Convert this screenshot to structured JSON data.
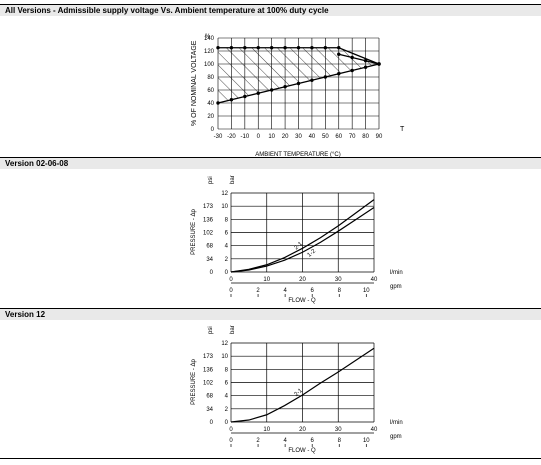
{
  "sections": [
    {
      "title": "All Versions - Admissible supply voltage Vs. Ambient temperature at 100% duty cycle"
    },
    {
      "title": "Version 02-06-08"
    },
    {
      "title": "Version 12"
    }
  ],
  "chart_data": [
    {
      "type": "line",
      "ylabel": "% OF NOMINAL VOLTAGE",
      "ylabel_unit": "%",
      "xlabel": "AMBIENT TEMPERATURE (°C)",
      "x_corner_label": "T",
      "xlim": [
        -30,
        90
      ],
      "ylim": [
        0,
        140
      ],
      "xticks": [
        -30,
        -20,
        -10,
        0,
        10,
        20,
        30,
        40,
        50,
        60,
        70,
        80,
        90
      ],
      "yticks": [
        0,
        20,
        40,
        60,
        80,
        100,
        120,
        140
      ],
      "grid": true,
      "hatched_region": true,
      "series": [
        {
          "x": [
            -30,
            -20,
            -10,
            0,
            10,
            20,
            30,
            40,
            50,
            60,
            90
          ],
          "y": [
            125,
            125,
            125,
            125,
            125,
            125,
            125,
            125,
            125,
            125,
            100
          ]
        },
        {
          "x": [
            -30,
            -20,
            -10,
            0,
            10,
            20,
            30,
            40,
            50,
            60,
            70,
            80,
            90
          ],
          "y": [
            40,
            45,
            50,
            55,
            60,
            65,
            70,
            75,
            80,
            85,
            90,
            95,
            100
          ]
        },
        {
          "x": [
            60,
            70,
            80,
            90
          ],
          "y": [
            115,
            110,
            105,
            100
          ]
        }
      ]
    },
    {
      "type": "line",
      "ylabel": "PRESSURE - Δp",
      "ylabel_unit_left": "psi",
      "ylabel_unit_right": "bar",
      "xlabel": "FLOW - Q",
      "x_unit_top": "l/min",
      "x_unit_bottom": "gpm",
      "xlim": [
        0,
        40
      ],
      "ylim": [
        0,
        12
      ],
      "xticks": [
        0,
        10,
        20,
        30,
        40
      ],
      "yticks": [
        0,
        2,
        4,
        6,
        8,
        10,
        12
      ],
      "yticks_psi": [
        "0",
        "34",
        "68",
        "102",
        "136",
        "173"
      ],
      "xticks_gpm": [
        "0",
        "2",
        "4",
        "6",
        "8",
        "10"
      ],
      "grid": true,
      "series": [
        {
          "label": "2-1",
          "x": [
            0,
            5,
            10,
            15,
            20,
            25,
            30,
            35,
            40
          ],
          "y": [
            0,
            0.4,
            1.1,
            2.2,
            3.6,
            5.2,
            7.0,
            9.0,
            11.0
          ]
        },
        {
          "label": "1-2",
          "x": [
            0,
            5,
            10,
            15,
            20,
            25,
            30,
            35,
            40
          ],
          "y": [
            0,
            0.3,
            0.9,
            1.8,
            3.0,
            4.5,
            6.2,
            8.0,
            9.8
          ]
        }
      ]
    },
    {
      "type": "line",
      "ylabel": "PRESSURE - Δp",
      "ylabel_unit_left": "psi",
      "ylabel_unit_right": "bar",
      "xlabel": "FLOW - Q",
      "x_unit_top": "l/min",
      "x_unit_bottom": "gpm",
      "xlim": [
        0,
        40
      ],
      "ylim": [
        0,
        12
      ],
      "xticks": [
        0,
        10,
        20,
        30,
        40
      ],
      "yticks": [
        0,
        2,
        4,
        6,
        8,
        10,
        12
      ],
      "yticks_psi": [
        "0",
        "34",
        "68",
        "102",
        "136",
        "173"
      ],
      "xticks_gpm": [
        "0",
        "2",
        "4",
        "6",
        "8",
        "10"
      ],
      "grid": true,
      "series": [
        {
          "label": "2-1",
          "x": [
            0,
            5,
            10,
            15,
            20,
            25,
            30,
            35,
            40
          ],
          "y": [
            0,
            0.3,
            1.1,
            2.5,
            4.1,
            5.9,
            7.6,
            9.4,
            11.2
          ]
        }
      ]
    }
  ]
}
